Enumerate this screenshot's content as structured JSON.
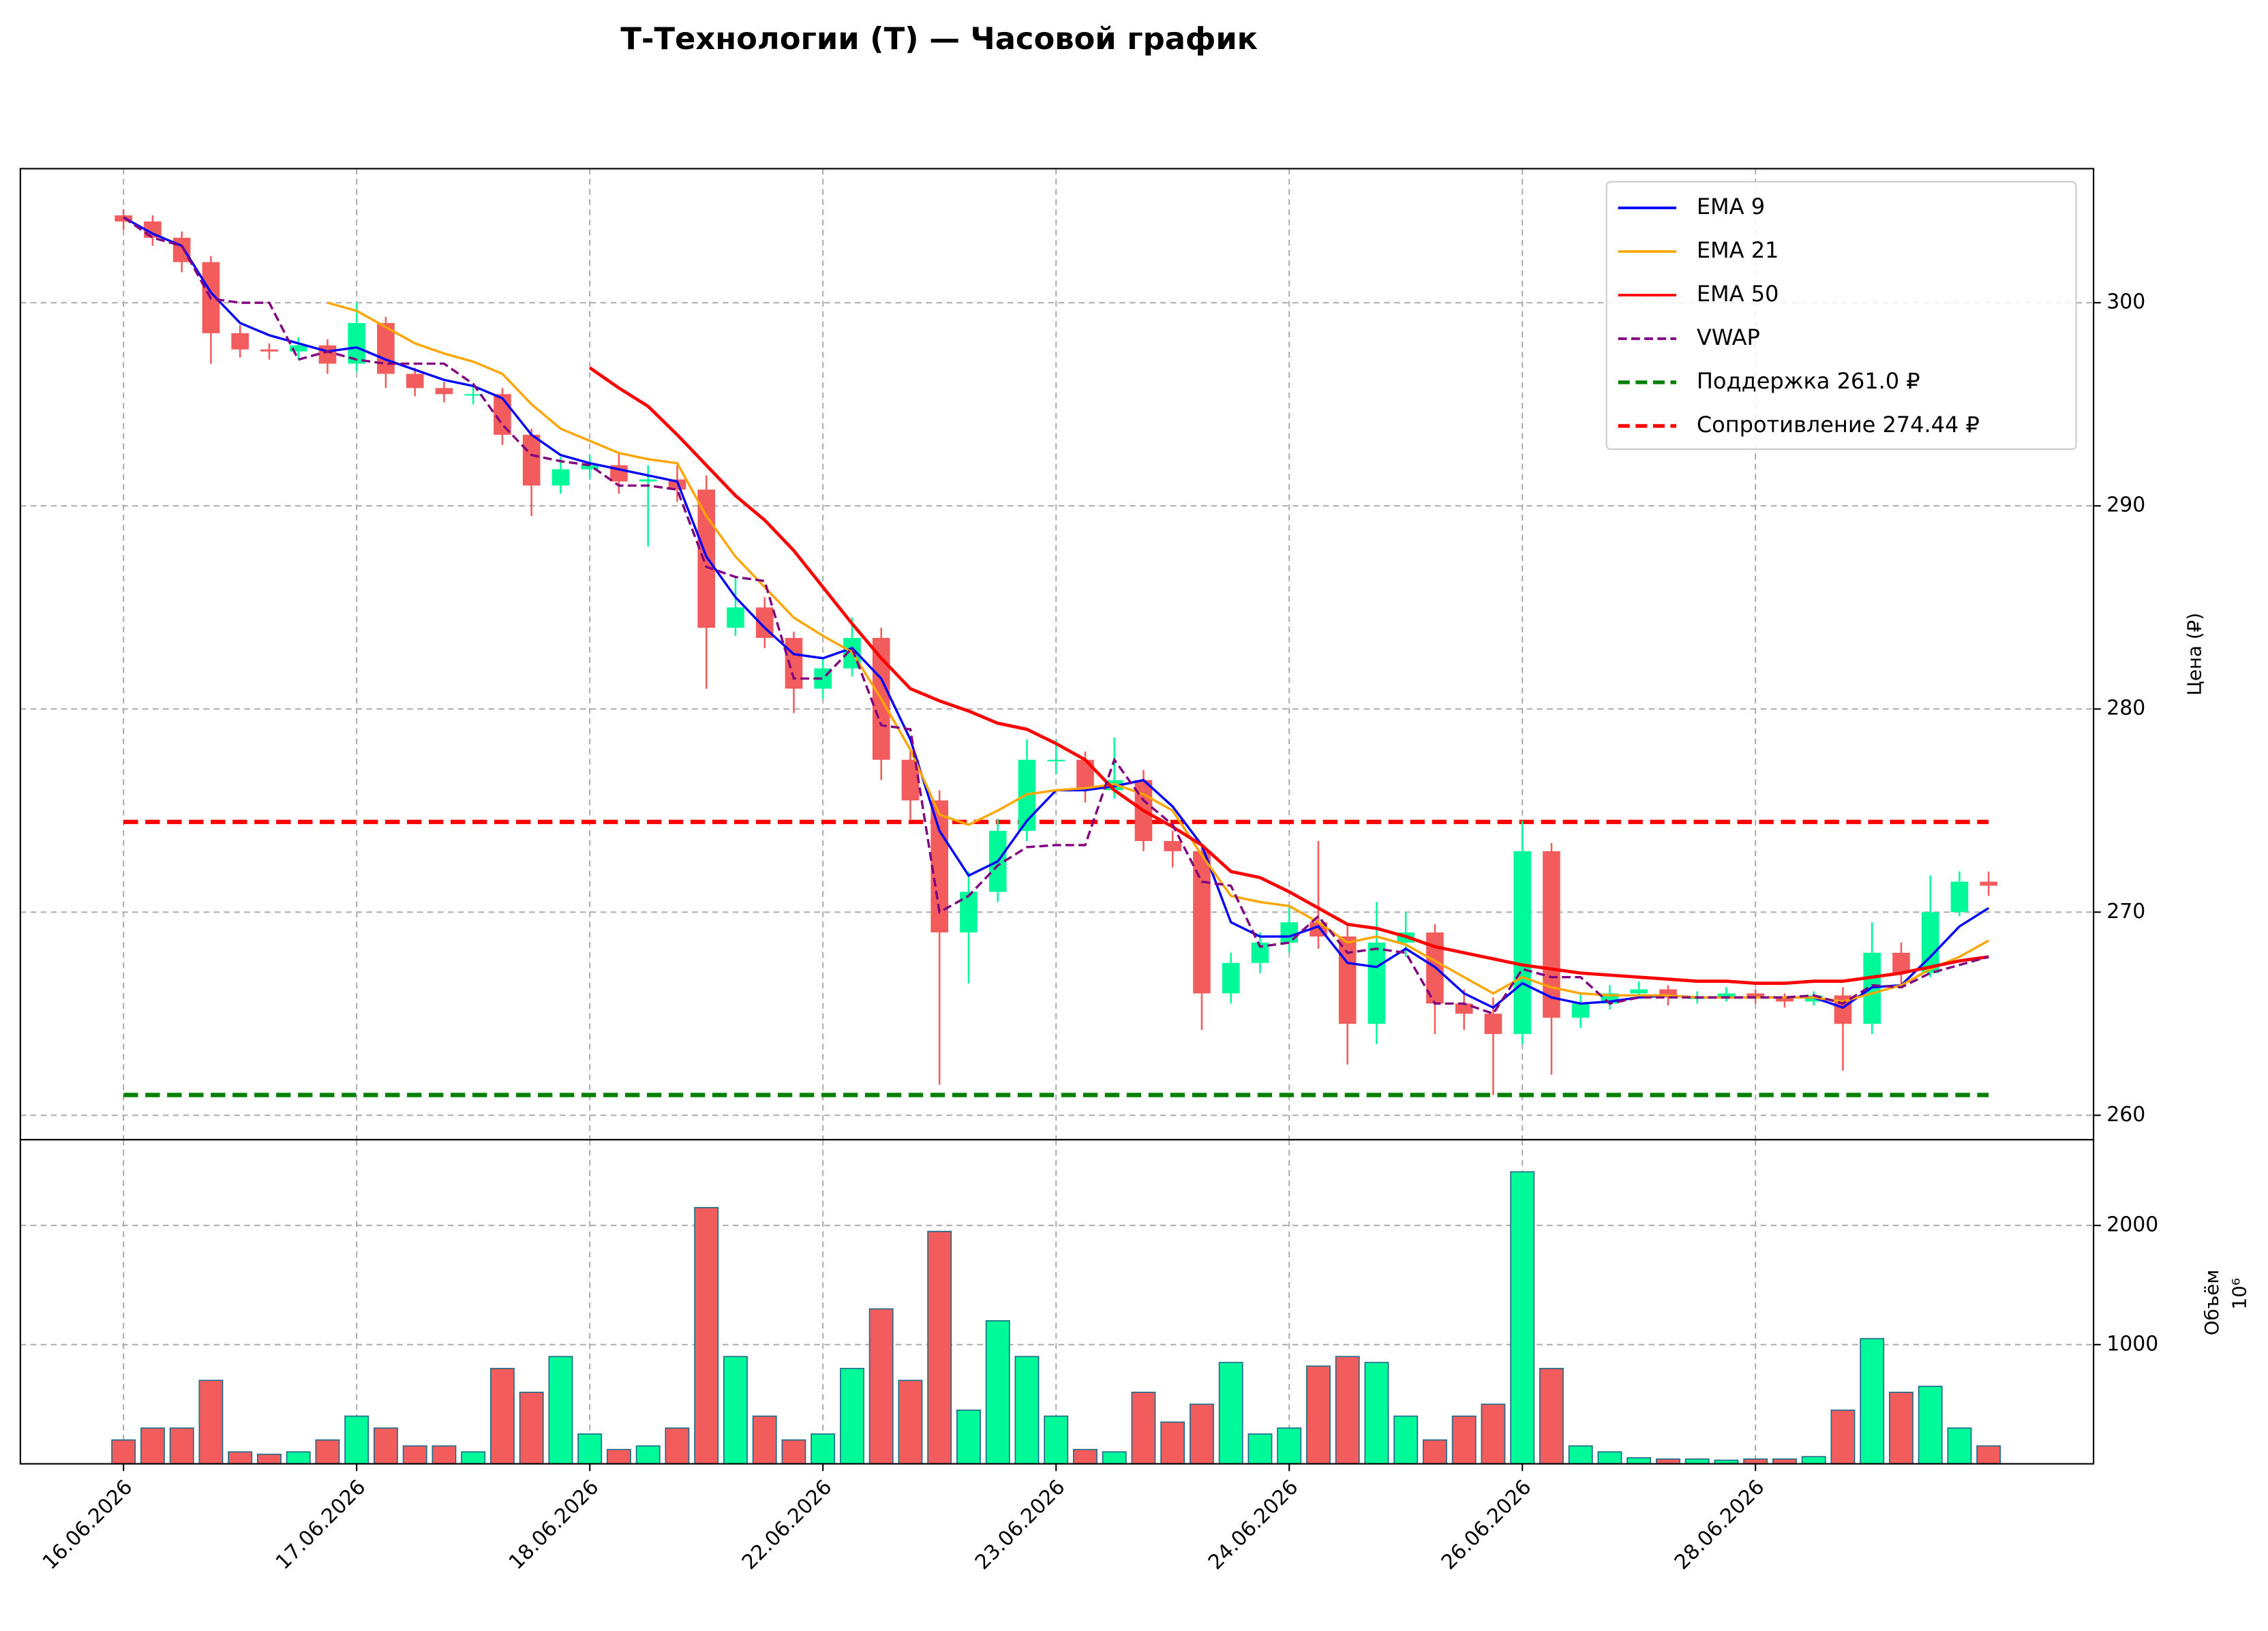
{
  "chart_data": {
    "type": "candlestick",
    "title": "Т-Технологии (T) — Часовой график",
    "y_label": "Цена (₽)",
    "volume_label": "Объём",
    "volume_offset": "10⁶",
    "up_color": "#00fa9a",
    "down_color": "#f25c5c",
    "volume_edge_color": "#1f6f8b",
    "grid": true,
    "legend": "upper right",
    "xlim": [
      -3.54,
      67.6
    ],
    "xticks": [
      {
        "value": 0,
        "label": "16.06.2026"
      },
      {
        "value": 8,
        "label": "17.06.2026"
      },
      {
        "value": 16,
        "label": "18.06.2026"
      },
      {
        "value": 24,
        "label": "22.06.2026"
      },
      {
        "value": 32,
        "label": "23.06.2026"
      },
      {
        "value": 40,
        "label": "24.06.2026"
      },
      {
        "value": 48,
        "label": "26.06.2026"
      },
      {
        "value": 56,
        "label": "28.06.2026"
      }
    ],
    "ylim": [
      258.8,
      306.6
    ],
    "yticks": [
      260,
      270,
      280,
      290,
      300
    ],
    "volume_ylim": [
      0,
      2720
    ],
    "volume_yticks": [
      1000,
      2000
    ],
    "open": [
      304.3,
      304,
      303.2,
      302,
      298.5,
      297.7,
      297.6,
      297.9,
      297,
      299,
      296.5,
      295.8,
      295.5,
      295.5,
      293.5,
      291,
      291.8,
      292,
      291.2,
      291.3,
      290.8,
      284,
      285,
      283.5,
      281,
      282,
      283.5,
      277.5,
      275.5,
      269,
      271,
      274,
      277.5,
      277.5,
      276,
      276.5,
      273.5,
      273,
      266,
      267.5,
      268.5,
      269.5,
      268.8,
      264.5,
      268.5,
      269,
      265.5,
      265,
      264,
      273,
      264.8,
      265.5,
      266,
      266.2,
      265.8,
      265.8,
      266,
      265.8,
      265.6,
      265.9,
      264.5,
      268,
      267,
      270,
      271.5
    ],
    "high": [
      304.6,
      304.3,
      303.5,
      302.3,
      298.9,
      298,
      298.3,
      298.2,
      300,
      299.3,
      296.8,
      296.1,
      296,
      295.8,
      293.8,
      292.4,
      292.5,
      292.6,
      292,
      292,
      291.5,
      286.5,
      285.5,
      283.8,
      282.5,
      284.5,
      284,
      278,
      276,
      272,
      274.6,
      278.5,
      278.5,
      277.9,
      278.6,
      277,
      274,
      273.3,
      268,
      269,
      270.3,
      273.5,
      269.4,
      270.5,
      270,
      269.4,
      266.2,
      265.8,
      274.5,
      273.4,
      266,
      266.4,
      266.6,
      266.4,
      266.1,
      266.3,
      266.2,
      266,
      266.1,
      266.3,
      269.5,
      268.5,
      271.8,
      272,
      272
    ],
    "low": [
      303.6,
      302.8,
      301.5,
      297,
      297.3,
      297.2,
      297.2,
      296.5,
      296.6,
      295.8,
      295.4,
      295.1,
      295,
      293,
      289.5,
      290.6,
      291.3,
      290.6,
      288,
      290.2,
      281,
      283.6,
      283,
      279.8,
      280.5,
      281.6,
      276.5,
      274.5,
      261.5,
      266.5,
      270.5,
      273.5,
      276.8,
      275.4,
      275.6,
      273,
      272.2,
      264.2,
      265.5,
      267,
      268,
      268.2,
      262.5,
      263.5,
      267.8,
      264,
      264.2,
      261,
      263.5,
      262,
      264.3,
      265.2,
      265.8,
      265.4,
      265.5,
      265.6,
      265.5,
      265.3,
      265.4,
      262.2,
      264,
      266.3,
      266.8,
      269.8,
      270.8
    ],
    "close": [
      304,
      303.2,
      302,
      298.5,
      297.7,
      297.6,
      297.9,
      297,
      299,
      296.5,
      295.8,
      295.5,
      295.5,
      293.5,
      291,
      291.8,
      292,
      291.2,
      291.3,
      290.8,
      284,
      285,
      283.5,
      281,
      282,
      283.5,
      277.5,
      275.5,
      269,
      271,
      274,
      277.5,
      277.5,
      276,
      276.5,
      273.5,
      273,
      266,
      267.5,
      268.5,
      269.5,
      268.8,
      264.5,
      268.5,
      269,
      265.5,
      265,
      264,
      273,
      264.8,
      265.5,
      266,
      266.2,
      265.8,
      265.8,
      266,
      265.8,
      265.6,
      265.9,
      264.5,
      268,
      267,
      270,
      271.5,
      271.3
    ],
    "volume": [
      200,
      300,
      300,
      700,
      100,
      80,
      100,
      200,
      400,
      300,
      150,
      150,
      100,
      800,
      600,
      900,
      250,
      120,
      150,
      300,
      2150,
      900,
      400,
      200,
      250,
      800,
      1300,
      700,
      1950,
      450,
      1200,
      900,
      400,
      120,
      100,
      600,
      350,
      500,
      850,
      250,
      300,
      820,
      900,
      850,
      400,
      200,
      400,
      500,
      2450,
      800,
      150,
      100,
      50,
      40,
      40,
      30,
      40,
      40,
      60,
      450,
      1050,
      600,
      650,
      300,
      150
    ],
    "series": [
      {
        "name": "EMA 9",
        "color": "#0000ff",
        "dash": false,
        "values": [
          304.2,
          303.4,
          302.8,
          300.5,
          299,
          298.4,
          298,
          297.6,
          297.8,
          297.2,
          296.7,
          296.2,
          295.9,
          295.3,
          293.5,
          292.5,
          292.1,
          291.8,
          291.5,
          291.2,
          287.5,
          285.5,
          284,
          282.7,
          282.5,
          283,
          281.5,
          278.5,
          274,
          271.8,
          272.5,
          274.5,
          276,
          276,
          276.2,
          276.5,
          275.2,
          273.3,
          269.5,
          268.8,
          268.8,
          269.3,
          267.5,
          267.3,
          268.2,
          267.3,
          266,
          265.3,
          266.5,
          265.8,
          265.5,
          265.6,
          265.8,
          265.9,
          265.8,
          265.8,
          265.8,
          265.8,
          265.8,
          265.3,
          266.3,
          266.4,
          267.8,
          269.3,
          270.2
        ]
      },
      {
        "name": "EMA 21",
        "color": "#ffa500",
        "dash": false,
        "values": [
          null,
          null,
          null,
          null,
          null,
          null,
          null,
          300,
          299.6,
          298.8,
          298,
          297.5,
          297.1,
          296.5,
          295,
          293.8,
          293.2,
          292.6,
          292.3,
          292.1,
          289.5,
          287.5,
          286,
          284.5,
          283.6,
          282.8,
          280.5,
          278,
          274.8,
          274.3,
          275,
          275.8,
          276,
          276.1,
          276.3,
          275.8,
          275,
          272.8,
          270.8,
          270.5,
          270.3,
          269.5,
          268.5,
          268.8,
          268.4,
          267.6,
          266.8,
          266,
          266.8,
          266.3,
          266,
          265.9,
          265.9,
          265.9,
          265.8,
          265.8,
          265.8,
          265.8,
          265.8,
          265.6,
          266,
          266.4,
          267.2,
          267.8,
          268.6
        ]
      },
      {
        "name": "EMA 50",
        "color": "#ff0000",
        "dash": false,
        "values": [
          null,
          null,
          null,
          null,
          null,
          null,
          null,
          null,
          null,
          null,
          null,
          null,
          null,
          null,
          null,
          null,
          296.8,
          295.8,
          294.9,
          293.5,
          292,
          290.5,
          289.3,
          287.8,
          286,
          284.2,
          282.5,
          281,
          280.4,
          279.9,
          279.3,
          279,
          278.3,
          277.5,
          276,
          275,
          274.2,
          273.3,
          272,
          271.7,
          271,
          270.2,
          269.4,
          269.2,
          268.8,
          268.3,
          268,
          267.7,
          267.4,
          267.2,
          267,
          266.9,
          266.8,
          266.7,
          266.6,
          266.6,
          266.5,
          266.5,
          266.6,
          266.6,
          266.8,
          267,
          267.3,
          267.6,
          267.8
        ]
      },
      {
        "name": "VWAP",
        "color": "#800080",
        "dash": true,
        "values": [
          304.2,
          303.2,
          302.8,
          300.2,
          300,
          300,
          297.2,
          297.6,
          297.2,
          297,
          297,
          297,
          296,
          294,
          292.5,
          292.2,
          292,
          291,
          291,
          290.8,
          287,
          286.5,
          286.3,
          281.5,
          281.5,
          283,
          279.2,
          279,
          270,
          270.8,
          272.3,
          273.2,
          273.3,
          273.3,
          277.5,
          275.5,
          274.3,
          271.5,
          271.3,
          268.3,
          268.5,
          269.8,
          268,
          268.2,
          268,
          265.5,
          265.5,
          265,
          267.2,
          266.8,
          266.8,
          265.5,
          265.8,
          265.8,
          265.8,
          265.8,
          265.8,
          265.8,
          265.9,
          265.5,
          266.4,
          266.3,
          267,
          267.4,
          267.8
        ]
      }
    ],
    "levels": [
      {
        "name": "Поддержка 261.0 ₽",
        "color": "#008000",
        "value": 261.0
      },
      {
        "name": "Сопротивление 274.44 ₽",
        "color": "#ff0000",
        "value": 274.44
      }
    ]
  }
}
